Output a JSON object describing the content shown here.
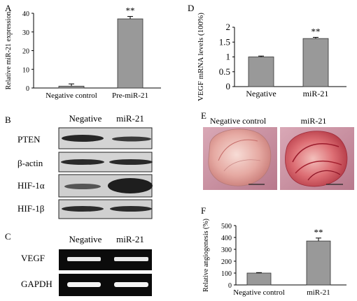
{
  "panel_letters": {
    "a": "A",
    "b": "B",
    "c": "C",
    "d": "D",
    "e": "E",
    "f": "F"
  },
  "chart_data": [
    {
      "panel": "A",
      "type": "bar",
      "categories": [
        "Negative control",
        "Pre-miR-21"
      ],
      "values": [
        1,
        37
      ],
      "errors": [
        1.2,
        1.3
      ],
      "ylabel": "Relative miR-21 expression",
      "ylim": [
        0,
        40
      ],
      "yticks": [
        "0",
        "10",
        "20",
        "30",
        "40"
      ],
      "annotations": [
        "",
        "**"
      ],
      "bar_color": "#999999"
    },
    {
      "panel": "D",
      "type": "bar",
      "categories": [
        "Negative",
        "miR-21"
      ],
      "values": [
        1.0,
        1.62
      ],
      "errors": [
        0.03,
        0.04
      ],
      "ylabel": "VEGF mRNA levels (100%)",
      "ylim": [
        0,
        2
      ],
      "yticks": [
        "0",
        "0.5",
        "1",
        "1.5",
        "2"
      ],
      "annotations": [
        "",
        "**"
      ],
      "bar_color": "#999999"
    },
    {
      "panel": "F",
      "type": "bar",
      "categories": [
        "Negative control",
        "miR-21"
      ],
      "values": [
        100,
        370
      ],
      "errors": [
        4,
        25
      ],
      "ylabel": "Relative angiogenesis (%)",
      "ylim": [
        0,
        500
      ],
      "yticks": [
        "0",
        "100",
        "200",
        "300",
        "400",
        "500"
      ],
      "annotations": [
        "",
        "**"
      ],
      "bar_color": "#999999"
    }
  ],
  "blot_b": {
    "col_labels": [
      "Negative",
      "miR-21"
    ],
    "rows": [
      "PTEN",
      "β-actin",
      "HIF-1α",
      "HIF-1β"
    ]
  },
  "gel_c": {
    "col_labels": [
      "Negative",
      "miR-21"
    ],
    "rows": [
      "VEGF",
      "GAPDH"
    ]
  },
  "photo_e": {
    "col_labels": [
      "Negative control",
      "miR-21"
    ]
  }
}
